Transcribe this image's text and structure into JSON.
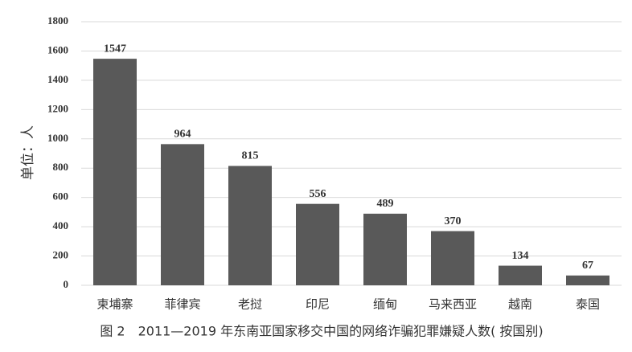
{
  "chart_data": {
    "type": "bar",
    "title": "图 2　2011—2019 年东南亚国家移交中国的网络诈骗犯罪嫌疑人数( 按国别)",
    "y_label": "单位：人",
    "categories": [
      "柬埔寨",
      "菲律宾",
      "老挝",
      "印尼",
      "缅甸",
      "马来西亚",
      "越南",
      "泰国"
    ],
    "values": [
      1547,
      964,
      815,
      556,
      489,
      370,
      134,
      67
    ],
    "color": "#595959",
    "ylim": [
      0,
      1800
    ],
    "yticks": [
      0,
      200,
      400,
      600,
      800,
      1000,
      1200,
      1400,
      1600,
      1800
    ],
    "grid": true
  }
}
